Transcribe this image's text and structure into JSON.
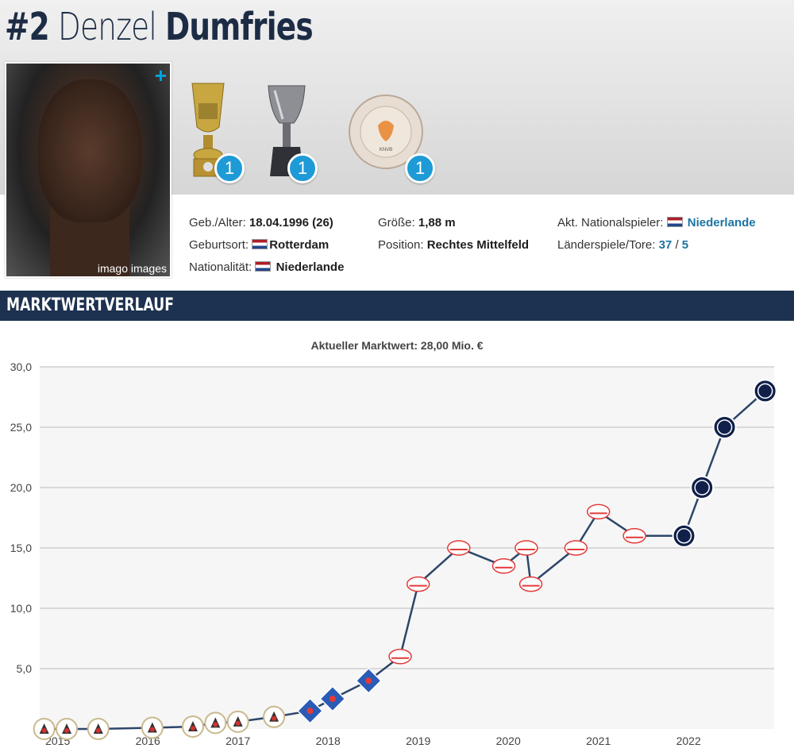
{
  "header": {
    "number": "#2",
    "first_name": "Denzel",
    "last_name": "Dumfries",
    "photo_credit": "imago images",
    "photo_plus": "+",
    "trophies": [
      {
        "name": "cup-trophy-icon",
        "count": "1"
      },
      {
        "name": "supercup-trophy-icon",
        "count": "1"
      },
      {
        "name": "kampioen-eerste-divisie-badge-icon",
        "count": "1"
      }
    ]
  },
  "info": {
    "birth_label": "Geb./Alter:",
    "birth_value": "18.04.1996 (26)",
    "birthplace_label": "Geburtsort:",
    "birthplace_value": "Rotterdam",
    "nationality_label": "Nationalität:",
    "nationality_value": "Niederlande",
    "height_label": "Größe:",
    "height_value": "1,88 m",
    "position_label": "Position:",
    "position_value": "Rechtes Mittelfeld",
    "national_label": "Akt. Nationalspieler:",
    "national_value": "Niederlande",
    "caps_label": "Länderspiele/Tore:",
    "caps_value": "37",
    "caps_sep": " / ",
    "goals_value": "5"
  },
  "section": {
    "title": "MARKTWERTVERLAUF"
  },
  "colors": {
    "navy": "#1d3150",
    "line": "#2d4669",
    "accent": "#1e9ad6",
    "link": "#1d75a3"
  },
  "chart_data": {
    "type": "line",
    "title": "Aktueller Marktwert: 28,00 Mio. €",
    "ylim": [
      0,
      30
    ],
    "yticks": [
      "5,0",
      "10,0",
      "15,0",
      "20,0",
      "25,0",
      "30,0"
    ],
    "ytick_values": [
      5,
      10,
      15,
      20,
      25,
      30
    ],
    "xticks": [
      "2015",
      "2016",
      "2017",
      "2018",
      "2019",
      "2020",
      "2021",
      "2022"
    ],
    "xlim": [
      2014.8,
      2022.95
    ],
    "grid": true,
    "points": [
      {
        "x": 2014.85,
        "y": 0.0,
        "club": "sparta"
      },
      {
        "x": 2015.1,
        "y": 0.0,
        "club": "sparta"
      },
      {
        "x": 2015.45,
        "y": 0.0,
        "club": "sparta"
      },
      {
        "x": 2016.05,
        "y": 0.1,
        "club": "sparta"
      },
      {
        "x": 2016.5,
        "y": 0.2,
        "club": "sparta"
      },
      {
        "x": 2016.75,
        "y": 0.5,
        "club": "sparta"
      },
      {
        "x": 2017.0,
        "y": 0.6,
        "club": "sparta"
      },
      {
        "x": 2017.4,
        "y": 1.0,
        "club": "sparta"
      },
      {
        "x": 2017.8,
        "y": 1.5,
        "club": "heerenveen"
      },
      {
        "x": 2018.05,
        "y": 2.5,
        "club": "heerenveen"
      },
      {
        "x": 2018.45,
        "y": 4.0,
        "club": "heerenveen"
      },
      {
        "x": 2018.8,
        "y": 6.0,
        "club": "psv"
      },
      {
        "x": 2019.0,
        "y": 12.0,
        "club": "psv"
      },
      {
        "x": 2019.45,
        "y": 15.0,
        "club": "psv"
      },
      {
        "x": 2019.95,
        "y": 13.5,
        "club": "psv"
      },
      {
        "x": 2020.2,
        "y": 15.0,
        "club": "psv"
      },
      {
        "x": 2020.25,
        "y": 12.0,
        "club": "psv"
      },
      {
        "x": 2020.75,
        "y": 15.0,
        "club": "psv"
      },
      {
        "x": 2021.0,
        "y": 18.0,
        "club": "psv"
      },
      {
        "x": 2021.4,
        "y": 16.0,
        "club": "psv"
      },
      {
        "x": 2021.95,
        "y": 16.0,
        "club": "inter"
      },
      {
        "x": 2022.15,
        "y": 20.0,
        "club": "inter"
      },
      {
        "x": 2022.4,
        "y": 25.0,
        "club": "inter"
      },
      {
        "x": 2022.85,
        "y": 28.0,
        "club": "inter"
      }
    ]
  }
}
